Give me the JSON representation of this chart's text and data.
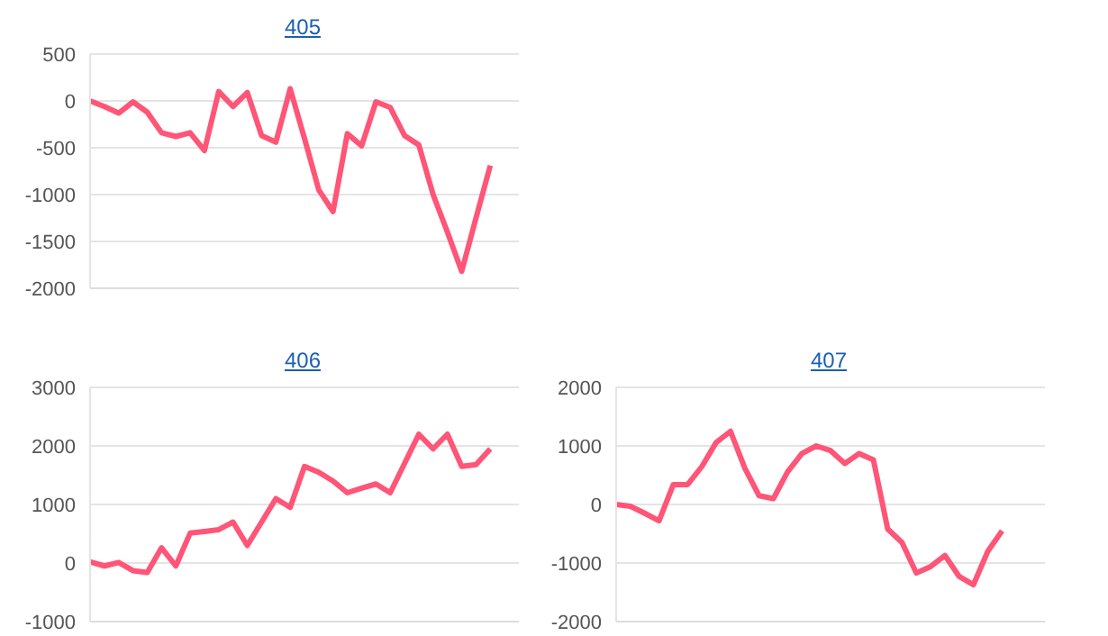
{
  "chart_data": [
    {
      "type": "line",
      "title": "405",
      "categories": [
        null,
        null,
        null,
        null,
        null,
        null,
        null,
        null,
        null,
        null,
        null,
        null,
        null,
        null,
        null,
        null,
        null,
        null,
        null,
        null,
        null,
        null,
        null,
        null,
        null,
        null,
        null,
        null,
        null,
        null,
        null
      ],
      "series": [
        {
          "color": "#ff5577",
          "values": [
            0,
            -60,
            -130,
            -10,
            -120,
            -340,
            -380,
            -340,
            -530,
            100,
            -60,
            90,
            -370,
            -440,
            130,
            -400,
            -950,
            -1180,
            -350,
            -480,
            -10,
            -70,
            -370,
            -470,
            -1000,
            -1400,
            -1820,
            -1250,
            -690,
            null,
            null
          ]
        }
      ],
      "ylim": [
        -2000,
        500
      ],
      "yticks": [
        -2000,
        -1500,
        -1000,
        -500,
        0,
        500
      ],
      "grid": "y",
      "legend": false,
      "marker": "none",
      "line_style": "solid"
    },
    {
      "type": "line",
      "title": "406",
      "categories": [
        null,
        null,
        null,
        null,
        null,
        null,
        null,
        null,
        null,
        null,
        null,
        null,
        null,
        null,
        null,
        null,
        null,
        null,
        null,
        null,
        null,
        null,
        null,
        null,
        null,
        null,
        null,
        null,
        null,
        null,
        null
      ],
      "series": [
        {
          "color": "#ff5577",
          "values": [
            20,
            -50,
            10,
            -130,
            -160,
            260,
            -50,
            510,
            540,
            570,
            700,
            300,
            700,
            1100,
            950,
            1650,
            1550,
            1400,
            1200,
            1280,
            1350,
            1200,
            1700,
            2200,
            1950,
            2200,
            1650,
            1680,
            1950,
            null,
            null
          ]
        }
      ],
      "ylim": [
        -1000,
        3000
      ],
      "yticks": [
        -1000,
        0,
        1000,
        2000,
        3000
      ],
      "grid": "y",
      "legend": false,
      "marker": "none",
      "line_style": "solid"
    },
    {
      "type": "line",
      "title": "407",
      "categories": [
        null,
        null,
        null,
        null,
        null,
        null,
        null,
        null,
        null,
        null,
        null,
        null,
        null,
        null,
        null,
        null,
        null,
        null,
        null,
        null,
        null,
        null,
        null,
        null,
        null,
        null,
        null,
        null,
        null,
        null,
        null
      ],
      "series": [
        {
          "color": "#ff5577",
          "values": [
            0,
            -30,
            -150,
            -280,
            340,
            340,
            650,
            1060,
            1250,
            620,
            150,
            100,
            560,
            870,
            1000,
            920,
            700,
            870,
            760,
            -420,
            -650,
            -1170,
            -1060,
            -870,
            -1230,
            -1370,
            -800,
            -450,
            null,
            null,
            null
          ]
        }
      ],
      "ylim": [
        -2000,
        2000
      ],
      "yticks": [
        -2000,
        -1000,
        0,
        1000,
        2000
      ],
      "grid": "y",
      "legend": false,
      "marker": "none",
      "line_style": "solid"
    }
  ]
}
